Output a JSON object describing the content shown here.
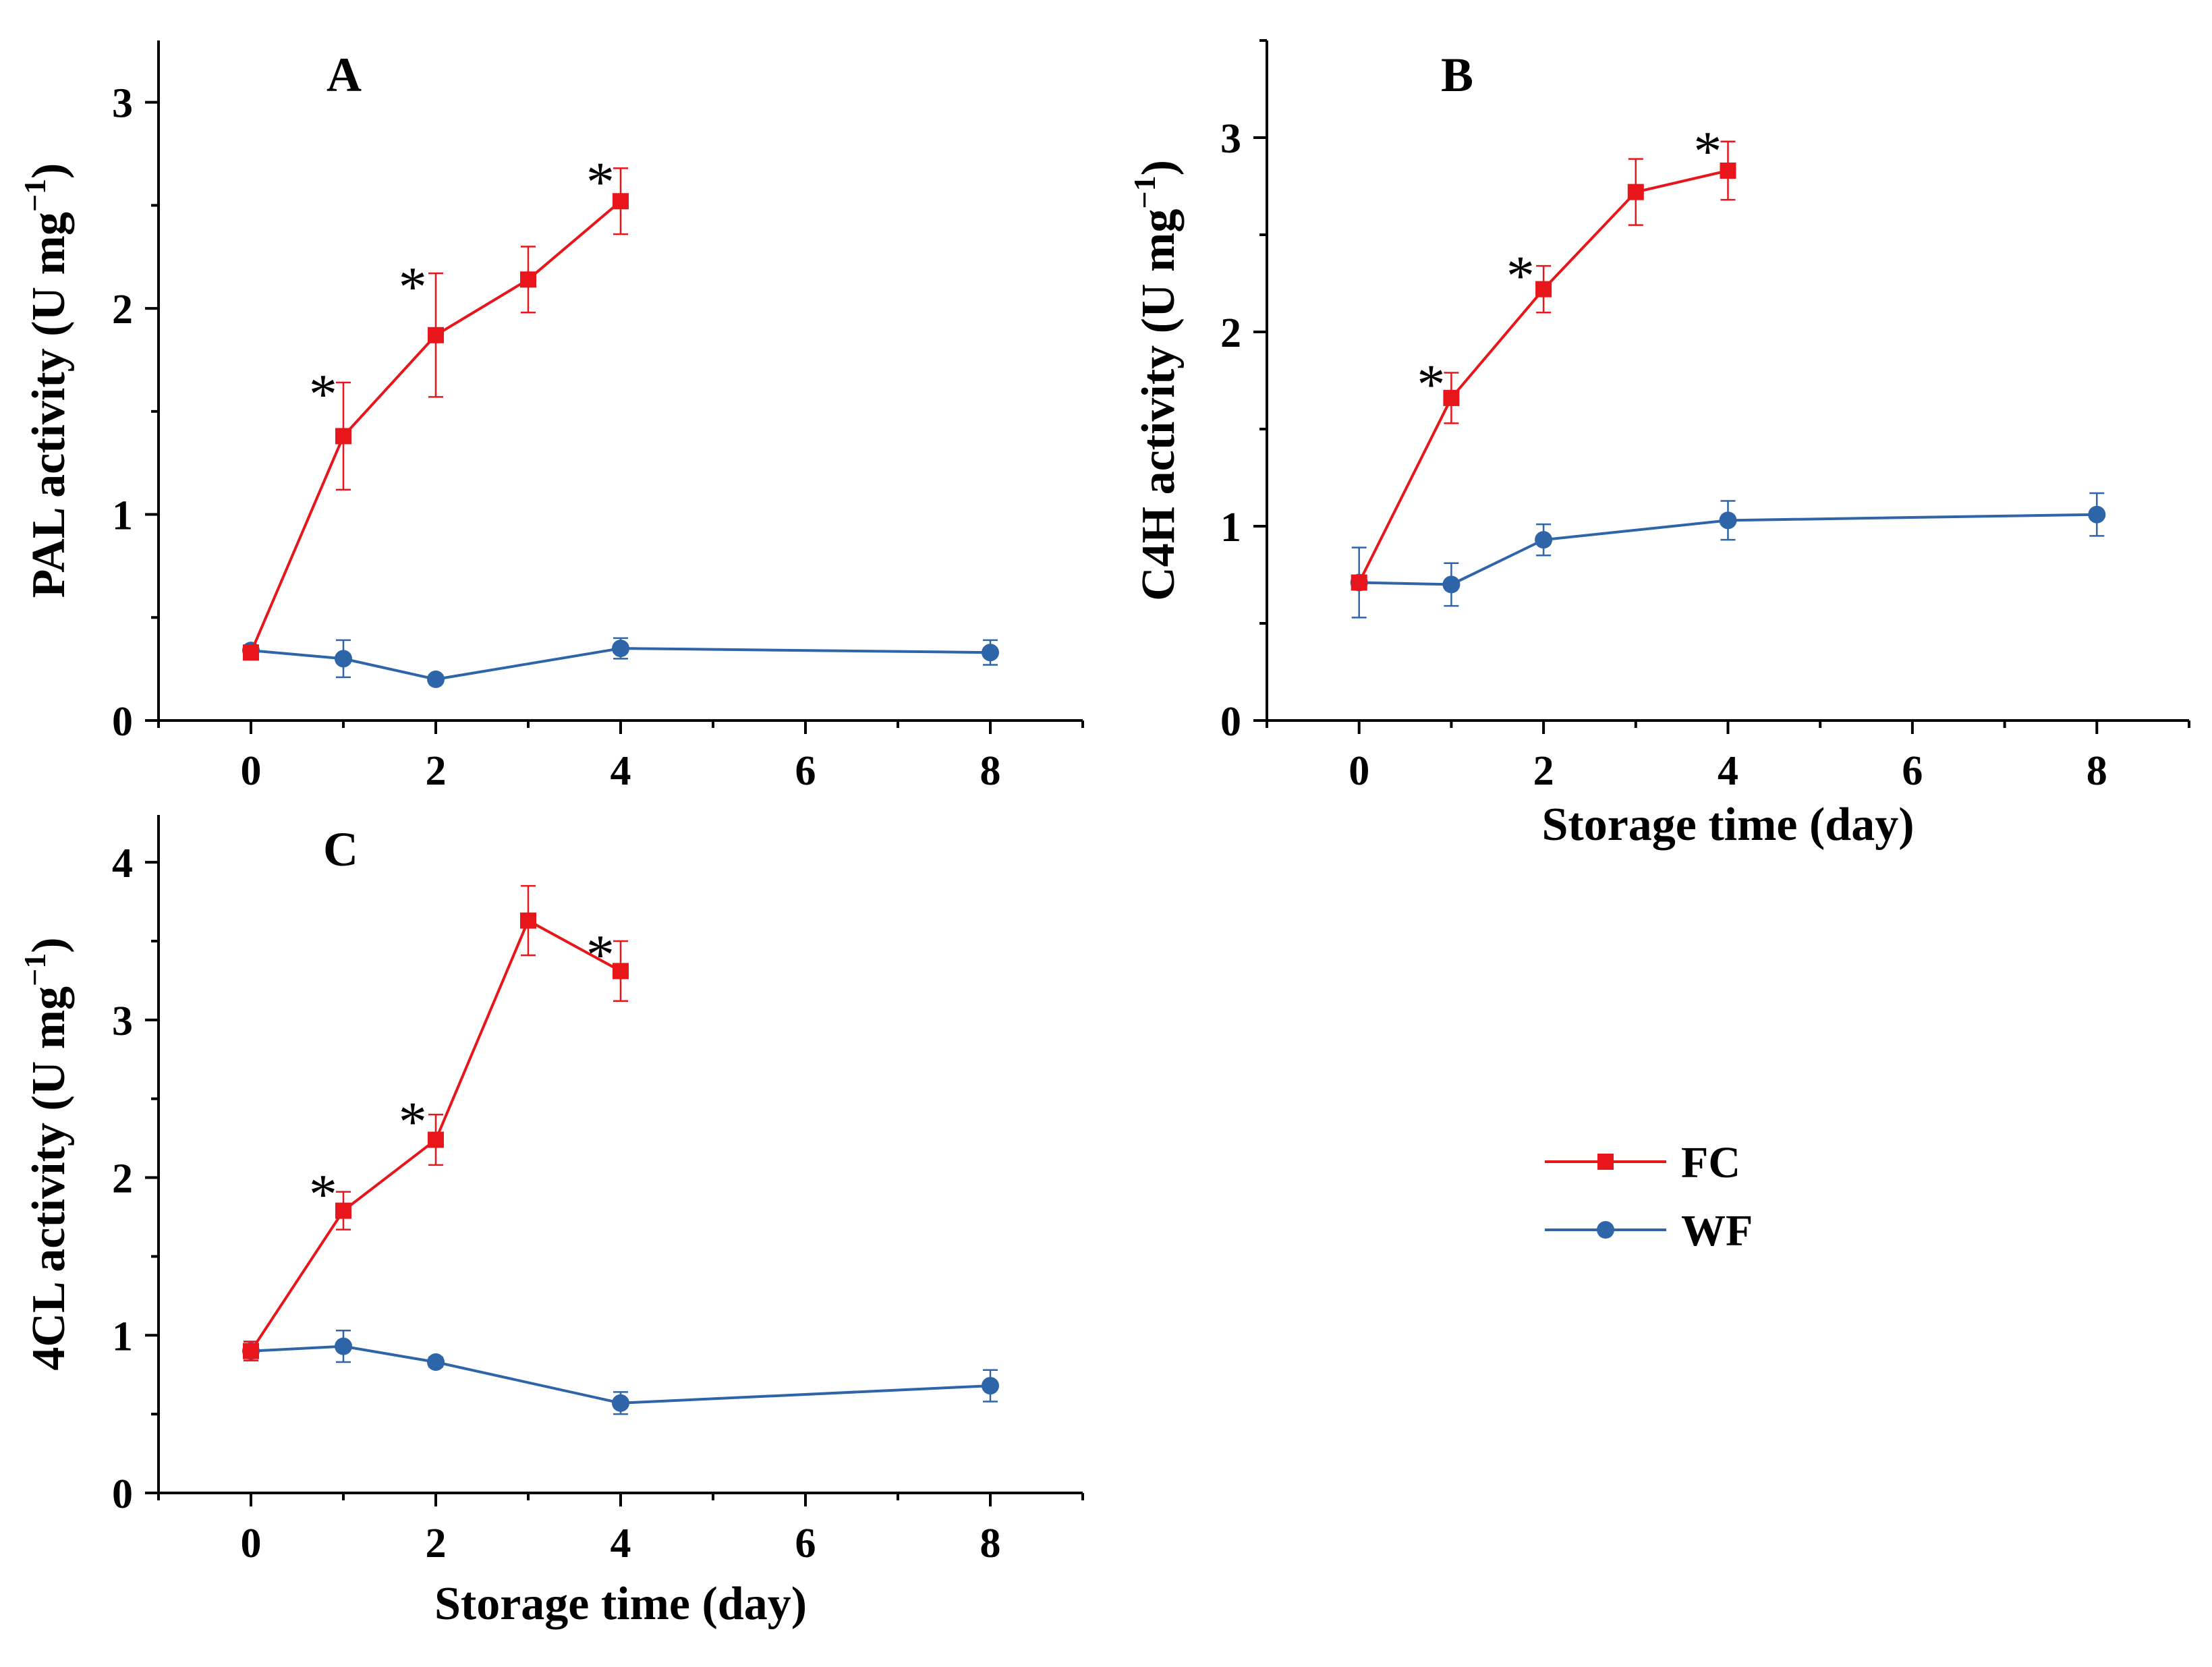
{
  "colors": {
    "FC": "#e8161b",
    "WF": "#2e64a8",
    "axis": "#000000"
  },
  "legend": [
    {
      "name": "FC",
      "marker": "square"
    },
    {
      "name": "WF",
      "marker": "circle"
    }
  ],
  "chart_data": [
    {
      "type": "line",
      "panel": "A",
      "ylabel": "PAL activity (U mg",
      "ylabel_sup": "−1",
      "ylabel_close": ")",
      "xlabel": "",
      "xlim": [
        -1,
        9
      ],
      "ylim": [
        0,
        3.3
      ],
      "xticks": [
        "0",
        "2",
        "4",
        "6",
        "8"
      ],
      "yticks": [
        "0",
        "1",
        "2",
        "3"
      ],
      "series": [
        {
          "name": "FC",
          "x": [
            0,
            1,
            2,
            3,
            4
          ],
          "y": [
            0.33,
            1.38,
            1.87,
            2.14,
            2.52
          ],
          "err": [
            0.02,
            0.26,
            0.3,
            0.16,
            0.16
          ]
        },
        {
          "name": "WF",
          "x": [
            0,
            1,
            2,
            4,
            8
          ],
          "y": [
            0.34,
            0.3,
            0.2,
            0.35,
            0.33
          ],
          "err": [
            0.02,
            0.09,
            0.02,
            0.05,
            0.06
          ]
        }
      ],
      "annotations": [
        {
          "text": "*",
          "x": 0.78,
          "y": 1.65
        },
        {
          "text": "*",
          "x": 1.75,
          "y": 2.17
        },
        {
          "text": "*",
          "x": 3.78,
          "y": 2.68
        }
      ]
    },
    {
      "type": "line",
      "panel": "B",
      "ylabel": "C4H activity (U mg",
      "ylabel_sup": "−1",
      "ylabel_close": ")",
      "xlabel": "Storage time (day)",
      "xlim": [
        -1,
        9
      ],
      "ylim": [
        0,
        3.5
      ],
      "xticks": [
        "0",
        "2",
        "4",
        "6",
        "8"
      ],
      "yticks": [
        "0",
        "1",
        "2",
        "3"
      ],
      "series": [
        {
          "name": "FC",
          "x": [
            0,
            1,
            2,
            3,
            4
          ],
          "y": [
            0.71,
            1.66,
            2.22,
            2.72,
            2.83
          ],
          "err": [
            0.02,
            0.13,
            0.12,
            0.17,
            0.15
          ]
        },
        {
          "name": "WF",
          "x": [
            0,
            1,
            2,
            4,
            8
          ],
          "y": [
            0.71,
            0.7,
            0.93,
            1.03,
            1.06
          ],
          "err": [
            0.18,
            0.11,
            0.08,
            0.1,
            0.11
          ]
        }
      ],
      "annotations": [
        {
          "text": "*",
          "x": 0.78,
          "y": 1.8
        },
        {
          "text": "*",
          "x": 1.75,
          "y": 2.36
        },
        {
          "text": "*",
          "x": 3.78,
          "y": 3.0
        }
      ]
    },
    {
      "type": "line",
      "panel": "C",
      "ylabel": "4CL activity (U mg",
      "ylabel_sup": "−1",
      "ylabel_close": ")",
      "xlabel": "Storage time (day)",
      "xlim": [
        -1,
        9
      ],
      "ylim": [
        0,
        4.3
      ],
      "xticks": [
        "0",
        "2",
        "4",
        "6",
        "8"
      ],
      "yticks": [
        "0",
        "1",
        "2",
        "3",
        "4"
      ],
      "series": [
        {
          "name": "FC",
          "x": [
            0,
            1,
            2,
            3,
            4
          ],
          "y": [
            0.9,
            1.79,
            2.24,
            3.63,
            3.31
          ],
          "err": [
            0.06,
            0.12,
            0.16,
            0.22,
            0.19
          ]
        },
        {
          "name": "WF",
          "x": [
            0,
            1,
            2,
            4,
            8
          ],
          "y": [
            0.9,
            0.93,
            0.83,
            0.57,
            0.68
          ],
          "err": [
            0.06,
            0.1,
            0.03,
            0.07,
            0.1
          ]
        }
      ],
      "annotations": [
        {
          "text": "*",
          "x": 0.78,
          "y": 1.98
        },
        {
          "text": "*",
          "x": 1.75,
          "y": 2.44
        },
        {
          "text": "*",
          "x": 3.78,
          "y": 3.5
        }
      ]
    }
  ]
}
